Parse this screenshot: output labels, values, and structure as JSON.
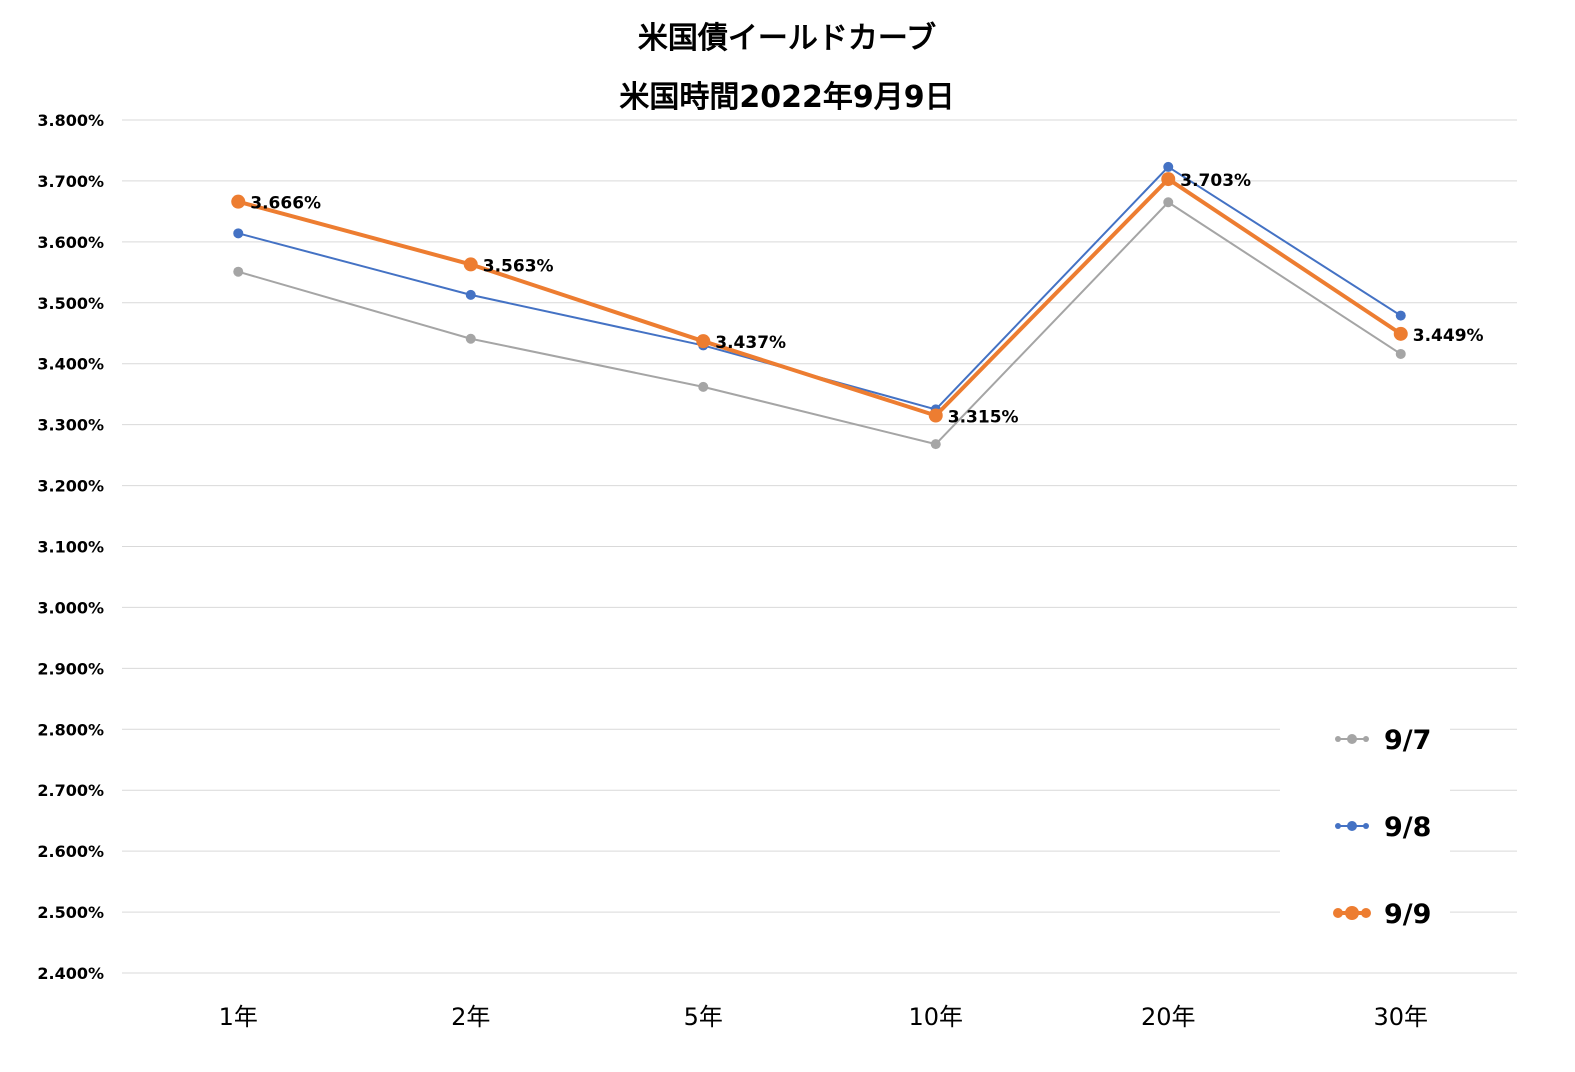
{
  "chart_data": {
    "type": "line",
    "title": [
      "米国債イールドカーブ",
      "米国時間2022年9月9日"
    ],
    "categories": [
      "1年",
      "2年",
      "5年",
      "10年",
      "20年",
      "30年"
    ],
    "ylim": [
      2.4,
      3.8
    ],
    "yticks": [
      "2.400%",
      "2.500%",
      "2.600%",
      "2.700%",
      "2.800%",
      "2.900%",
      "3.000%",
      "3.100%",
      "3.200%",
      "3.300%",
      "3.400%",
      "3.500%",
      "3.600%",
      "3.700%",
      "3.800%"
    ],
    "grid": true,
    "legend_position": "bottom-right",
    "series": [
      {
        "name": "9/7",
        "color": "#a5a5a5",
        "values": [
          3.551,
          3.441,
          3.362,
          3.268,
          3.665,
          3.416
        ]
      },
      {
        "name": "9/8",
        "color": "#4472c4",
        "values": [
          3.614,
          3.513,
          3.43,
          3.325,
          3.723,
          3.479
        ]
      },
      {
        "name": "9/9",
        "color": "#ed7d31",
        "values": [
          3.666,
          3.563,
          3.437,
          3.315,
          3.703,
          3.449
        ],
        "data_labels": [
          "3.666%",
          "3.563%",
          "3.437%",
          "3.315%",
          "3.703%",
          "3.449%"
        ]
      }
    ]
  }
}
